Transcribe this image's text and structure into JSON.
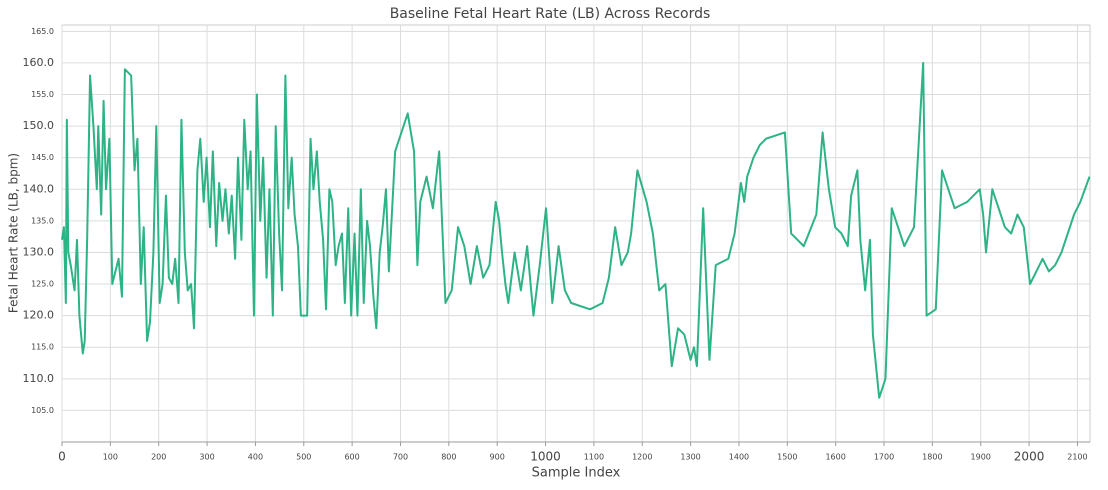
{
  "chart_data": {
    "type": "line",
    "title": "Baseline Fetal Heart Rate (LB) Across Records",
    "x_label": "Sample Index",
    "y_label": "Fetal Heart Rate (LB, bpm)",
    "xlim": [
      0,
      2126
    ],
    "xticks": [
      0,
      100,
      200,
      300,
      400,
      500,
      600,
      700,
      800,
      900,
      1000,
      1100,
      1200,
      1300,
      1400,
      1500,
      1600,
      1700,
      1800,
      1900,
      2000,
      2100
    ],
    "ylim": [
      100,
      166
    ],
    "yticks": [
      {
        "value": 105,
        "label": "105.0"
      },
      {
        "value": 110,
        "label": "110.0"
      },
      {
        "value": 115,
        "label": "115.0"
      },
      {
        "value": 120,
        "label": "120.0"
      },
      {
        "value": 125,
        "label": "125.0"
      },
      {
        "value": 130,
        "label": "130.0"
      },
      {
        "value": 135,
        "label": "135.0"
      },
      {
        "value": 140,
        "label": "140.0"
      },
      {
        "value": 145,
        "label": "145.0"
      },
      {
        "value": 150,
        "label": "150.0"
      },
      {
        "value": 155,
        "label": "155.0"
      },
      {
        "value": 160,
        "label": "160.0"
      },
      {
        "value": 165,
        "label": "165.0"
      }
    ],
    "grid": true,
    "series": [
      {
        "color": "#2db386",
        "x": [
          0,
          4,
          8,
          10,
          13,
          18,
          26,
          31,
          36,
          43,
          47,
          52,
          58,
          65,
          72,
          75,
          81,
          86,
          91,
          98,
          104,
          117,
          124,
          130,
          143,
          150,
          156,
          163,
          169,
          176,
          182,
          189,
          195,
          202,
          208,
          215,
          221,
          228,
          234,
          241,
          247,
          254,
          260,
          267,
          273,
          280,
          286,
          293,
          299,
          306,
          312,
          319,
          325,
          332,
          338,
          345,
          351,
          358,
          364,
          371,
          377,
          384,
          390,
          397,
          403,
          410,
          416,
          423,
          429,
          436,
          442,
          449,
          455,
          462,
          468,
          475,
          481,
          488,
          494,
          507,
          514,
          520,
          527,
          533,
          540,
          546,
          553,
          559,
          566,
          572,
          579,
          585,
          592,
          598,
          605,
          611,
          618,
          624,
          631,
          637,
          644,
          650,
          657,
          663,
          670,
          676,
          689,
          715,
          728,
          735,
          741,
          754,
          767,
          780,
          793,
          806,
          819,
          832,
          845,
          858,
          871,
          884,
          897,
          904,
          910,
          917,
          923,
          936,
          949,
          962,
          975,
          988,
          1001,
          1014,
          1027,
          1040,
          1053,
          1092,
          1118,
          1131,
          1144,
          1157,
          1170,
          1177,
          1190,
          1209,
          1222,
          1235,
          1248,
          1261,
          1274,
          1287,
          1300,
          1307,
          1313,
          1326,
          1339,
          1352,
          1378,
          1391,
          1404,
          1411,
          1417,
          1430,
          1443,
          1456,
          1495,
          1508,
          1521,
          1534,
          1560,
          1573,
          1580,
          1586,
          1599,
          1612,
          1625,
          1632,
          1645,
          1651,
          1661,
          1671,
          1677,
          1690,
          1703,
          1716,
          1729,
          1742,
          1762,
          1781,
          1788,
          1807,
          1820,
          1833,
          1846,
          1872,
          1885,
          1898,
          1905,
          1911,
          1924,
          1950,
          1963,
          1976,
          1989,
          2002,
          2028,
          2041,
          2054,
          2067,
          2080,
          2093,
          2106,
          2125
        ],
        "values": [
          132,
          134,
          122,
          151,
          130,
          128,
          124,
          132,
          120,
          114,
          116,
          132,
          158,
          150,
          140,
          150,
          136,
          154,
          140,
          148,
          125,
          129,
          123,
          159,
          158,
          143,
          148,
          125,
          134,
          116,
          119,
          130,
          150,
          122,
          125,
          139,
          126,
          125,
          129,
          122,
          151,
          130,
          124,
          125,
          118,
          143,
          148,
          138,
          145,
          134,
          146,
          131,
          141,
          135,
          140,
          133,
          139,
          129,
          145,
          132,
          151,
          140,
          146,
          120,
          155,
          135,
          145,
          126,
          140,
          120,
          150,
          133,
          124,
          158,
          137,
          145,
          136,
          131,
          120,
          120,
          148,
          140,
          146,
          138,
          132,
          121,
          140,
          138,
          128,
          131,
          133,
          122,
          137,
          120,
          133,
          120,
          140,
          122,
          135,
          131,
          123,
          118,
          130,
          134,
          140,
          127,
          146,
          152,
          146,
          128,
          138,
          142,
          137,
          146,
          122,
          124,
          134,
          131,
          125,
          131,
          126,
          128,
          138,
          135,
          130,
          125,
          122,
          130,
          124,
          131,
          120,
          128,
          137,
          122,
          131,
          124,
          122,
          121,
          122,
          126,
          134,
          128,
          130,
          133,
          143,
          138,
          133,
          124,
          125,
          112,
          118,
          117,
          113,
          115,
          112,
          137,
          113,
          128,
          129,
          133,
          141,
          138,
          142,
          145,
          147,
          148,
          149,
          133,
          132,
          131,
          136,
          149,
          144,
          140,
          134,
          133,
          131,
          139,
          143,
          132,
          124,
          132,
          117,
          107,
          110,
          137,
          134,
          131,
          134,
          160,
          120,
          121,
          143,
          140,
          137,
          138,
          139,
          140,
          136,
          130,
          140,
          134,
          133,
          136,
          134,
          125,
          129,
          127,
          128,
          130,
          133,
          136,
          138,
          142
        ]
      }
    ]
  }
}
